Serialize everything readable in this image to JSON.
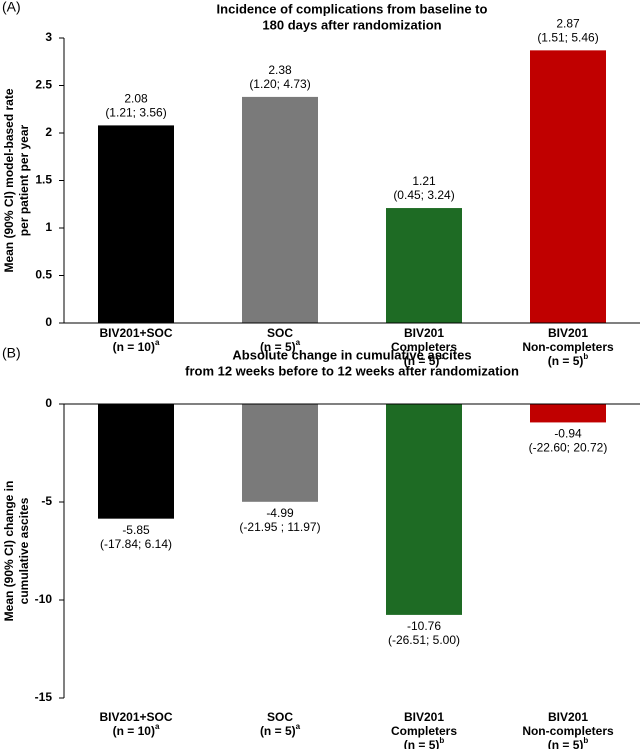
{
  "chart_data": [
    {
      "type": "bar",
      "panel_label": "(A)",
      "title": [
        "Incidence of complications from baseline to",
        "180 days after randomization"
      ],
      "y_label": [
        "Mean (90% CI) model-based rate",
        "per patient per year"
      ],
      "categories": [
        [
          "BIV201+SOC",
          "(n = 10)"
        ],
        [
          "SOC",
          "(n = 5)"
        ],
        [
          "BIV201",
          "Completers",
          "(n = 5)"
        ],
        [
          "BIV201",
          "Non-completers",
          "(n = 5)"
        ]
      ],
      "superscripts": [
        "a",
        "a",
        "b",
        "b"
      ],
      "values": [
        2.08,
        2.38,
        1.21,
        2.87
      ],
      "ci_labels": [
        "(1.21; 3.56)",
        "(1.20; 4.73)",
        "(0.45; 3.24)",
        "(1.51; 5.46)"
      ],
      "colors": [
        "#000000",
        "#7a7a7a",
        "#1e6b24",
        "#c00000"
      ],
      "ylim": [
        0,
        3
      ],
      "yticks": [
        0,
        0.5,
        1,
        1.5,
        2,
        2.5,
        3
      ],
      "grid": false
    },
    {
      "type": "bar",
      "panel_label": "(B)",
      "title": [
        "Absolute change in cumulative ascites",
        "from 12 weeks before to 12 weeks after randomization"
      ],
      "y_label": [
        "Mean (90% CI) change in",
        "cumulative ascites"
      ],
      "categories": [
        [
          "BIV201+SOC",
          "(n = 10)"
        ],
        [
          "SOC",
          "(n = 5)"
        ],
        [
          "BIV201",
          "Completers",
          "(n = 5)"
        ],
        [
          "BIV201",
          "Non-completers",
          "(n = 5)"
        ]
      ],
      "superscripts": [
        "a",
        "a",
        "b",
        "b"
      ],
      "values": [
        -5.85,
        -4.99,
        -10.76,
        -0.94
      ],
      "ci_labels": [
        "(-17.84; 6.14)",
        "(-21.95 ; 11.97)",
        "(-26.51; 5.00)",
        "(-22.60; 20.72)"
      ],
      "colors": [
        "#000000",
        "#7a7a7a",
        "#1e6b24",
        "#c00000"
      ],
      "ylim": [
        -15,
        0
      ],
      "yticks": [
        0,
        -5,
        -10,
        -15
      ],
      "grid": false
    }
  ]
}
